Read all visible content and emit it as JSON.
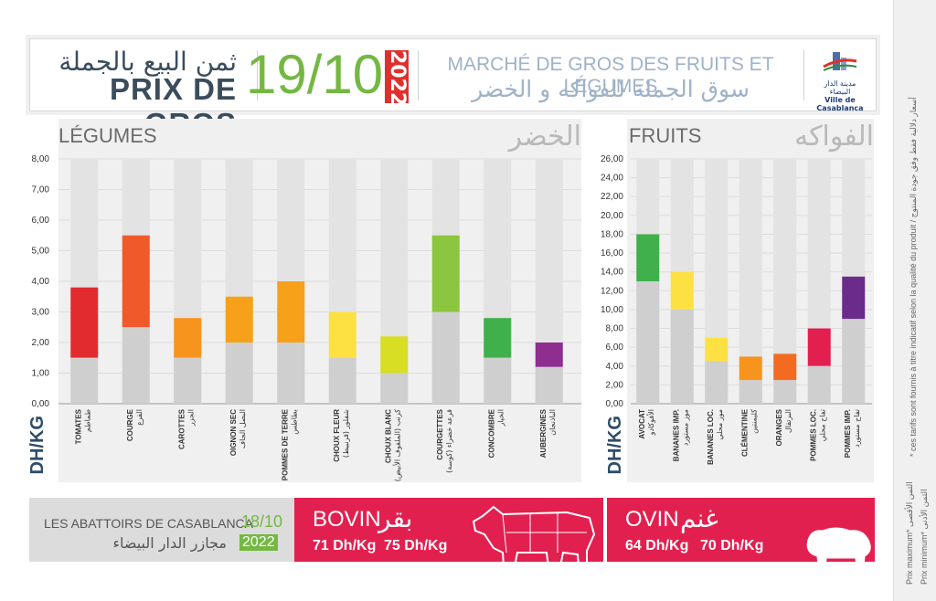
{
  "header": {
    "title_ar": "ثمن البيع بالجملة",
    "title_fr": "PRIX DE GROS",
    "date": "19/10",
    "year": "2022",
    "market_fr": "MARCHÉ DE GROS DES FRUITS ET LÉGUMES",
    "market_ar": "سوق الجملة للفواكه و الخضر",
    "logo_ar": "مدينة الدار البيضاء",
    "logo_fr": "Ville de Casablanca"
  },
  "legumes": {
    "title_fr": "LÉGUMES",
    "title_ar": "الخضر",
    "unit": "DH/KG"
  },
  "fruits": {
    "title_fr": "FRUITS",
    "title_ar": "الفواكه",
    "unit": "DH/KG"
  },
  "colors": {
    "min_bar": "#cfcfcf",
    "legumes": [
      "#e22b2e",
      "#f0592a",
      "#f7941d",
      "#f7a11a",
      "#f7a11a",
      "#fde143",
      "#d7de24",
      "#8cc63e",
      "#3fb04b",
      "#8e2e8f"
    ],
    "fruits": [
      "#3fb04b",
      "#fde143",
      "#fde143",
      "#f7941d",
      "#f26b21",
      "#e2204f",
      "#6a2b8b"
    ],
    "accent_red": "#e2204f",
    "accent_green": "#74b843"
  },
  "chart_data": [
    {
      "type": "bar",
      "title": "LÉGUMES",
      "ylabel": "DH/KG",
      "ylim": [
        0,
        8
      ],
      "yticks": [
        "0,00",
        "1,00",
        "2,00",
        "3,00",
        "4,00",
        "5,00",
        "6,00",
        "7,00",
        "8,00"
      ],
      "categories": [
        {
          "fr": "TOMATES",
          "ar": "طماطم"
        },
        {
          "fr": "COURGE",
          "ar": "القرع"
        },
        {
          "fr": "CAROTTES",
          "ar": "الجزر"
        },
        {
          "fr": "OIGNON SEC",
          "ar": "البصل الجاف"
        },
        {
          "fr": "POMMES DE TERRE",
          "ar": "بطاطس"
        },
        {
          "fr": "CHOUX FLEUR",
          "ar": "شفلور (قرنبيط)"
        },
        {
          "fr": "CHOUX BLANC",
          "ar": "كرنب (الملفوف الأبيض)"
        },
        {
          "fr": "COURGETTES",
          "ar": "قرعة خضراء (كوسة)"
        },
        {
          "fr": "CONCOMBRE",
          "ar": "الخيار"
        },
        {
          "fr": "AUBERGINES",
          "ar": "الباذنجان"
        }
      ],
      "series": [
        {
          "name": "Prix minimum",
          "values": [
            1.5,
            2.5,
            1.5,
            2.0,
            2.0,
            1.5,
            1.0,
            3.0,
            1.5,
            1.2
          ]
        },
        {
          "name": "Prix maximum",
          "values": [
            3.8,
            5.5,
            2.8,
            3.5,
            4.0,
            3.0,
            2.2,
            5.5,
            2.8,
            2.0
          ]
        }
      ],
      "grid": true
    },
    {
      "type": "bar",
      "title": "FRUITS",
      "ylabel": "DH/KG",
      "ylim": [
        0,
        26
      ],
      "yticks": [
        "0,00",
        "2,00",
        "4,00",
        "6,00",
        "8,00",
        "10,00",
        "12,00",
        "14,00",
        "16,00",
        "18,00",
        "20,00",
        "22,00",
        "24,00",
        "26,00"
      ],
      "categories": [
        {
          "fr": "AVOCAT",
          "ar": "الأفوكادو"
        },
        {
          "fr": "BANANES IMP.",
          "ar": "موز مستورد"
        },
        {
          "fr": "BANANES LOC.",
          "ar": "موز محلي"
        },
        {
          "fr": "CLÉMENTINE",
          "ar": "كليمنتين"
        },
        {
          "fr": "ORANGES",
          "ar": "البرتقال"
        },
        {
          "fr": "POMMES LOC.",
          "ar": "تفاح محلي"
        },
        {
          "fr": "POMMES IMP.",
          "ar": "تفاح مستورد"
        }
      ],
      "series": [
        {
          "name": "Prix minimum",
          "values": [
            13.0,
            10.0,
            4.5,
            2.5,
            2.5,
            4.0,
            9.0
          ]
        },
        {
          "name": "Prix maximum",
          "values": [
            18.0,
            14.0,
            7.0,
            5.0,
            5.3,
            8.0,
            13.5
          ]
        }
      ],
      "grid": true
    }
  ],
  "meat": {
    "slaughter_fr": "LES ABATTOIRS DE CASABLANCA",
    "slaughter_ar": "مجازر الدار البيضاء",
    "date": "18/10",
    "year": "2022",
    "bovin_fr": "BOVIN",
    "bovin_ar": "بقر",
    "bovin_min": "71 Dh/Kg",
    "bovin_max": "75 Dh/Kg",
    "ovin_fr": "OVIN",
    "ovin_ar": "غنم",
    "ovin_min": "64 Dh/Kg",
    "ovin_max": "70 Dh/Kg"
  },
  "notes": {
    "disclaimer": "* ces tarifs sont fournis à titre indicatif selon la qualité du produit / أسعار دلالية فقط وفق جودة المنتوج",
    "prix_max": "Prix maximum* الثمن الأقصى",
    "prix_min": "Prix minimum* الثمن الأدنى"
  }
}
